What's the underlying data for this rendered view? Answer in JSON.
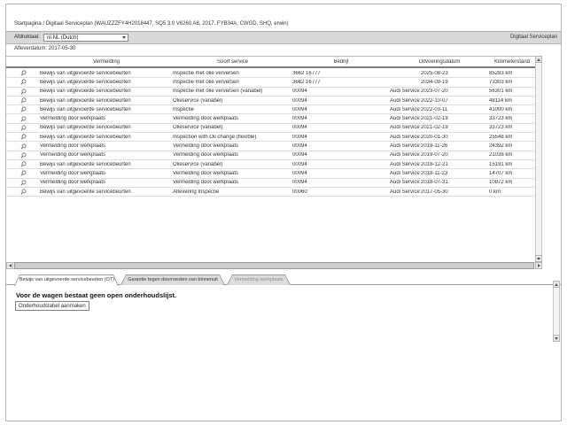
{
  "colors": {
    "toolbar_bg": "#d9d9d9",
    "frame_border": "#b3b3b3",
    "row_divider": "#dedede",
    "tab_inactive_bg": "#dcdcdc",
    "tab_active_bg": "#ffffff"
  },
  "breadcrumb": {
    "text": "Startpagina / Digitaal Serviceplan (WAUZZZFY4H2018447, SQ5 3.0 V6260 A8, 2017, FYB34A, CWGD, SHQ, erwin)"
  },
  "toolbar": {
    "print_language_label": "Afdruktaal:",
    "print_language_value": "nl-NL (Dutch)",
    "app_title": "Digitaal Serviceplan"
  },
  "delivery": {
    "label": "Afleverdatum:",
    "value": "2017-05-30",
    "text": "Afleverdatum: 2017-05-30"
  },
  "table": {
    "columns": [
      "Vermelding",
      "Soort service",
      "Bedrijf",
      "Uitvoeringsdatum",
      "Kilometerstand"
    ],
    "row_icon": "magnifier-icon",
    "rows": [
      {
        "vermelding": "Bewijs van uitgevoerde servicebeurten",
        "soort_service": "Inspectie met olie verversen",
        "bedrijf": "3662 16777",
        "uitvoerder": "",
        "datum": "2025-08-23",
        "kilometerstand": "85283 km"
      },
      {
        "vermelding": "Bewijs van uitgevoerde servicebeurten",
        "soort_service": "Inspectie met olie verversen",
        "bedrijf": "3662 16777",
        "uitvoerder": "",
        "datum": "2034-09-19",
        "kilometerstand": "73303 km"
      },
      {
        "vermelding": "Bewijs van uitgevoerde servicebeurten",
        "soort_service": "Inspectie met olie verversen (variabel)",
        "bedrijf": "00094",
        "uitvoerder": "Audi Service",
        "datum": "2023-07-20",
        "kilometerstand": "56301 km"
      },
      {
        "vermelding": "Bewijs van uitgevoerde servicebeurten",
        "soort_service": "Olieservice (variabel)",
        "bedrijf": "00094",
        "uitvoerder": "Audi Service",
        "datum": "2022-10-07",
        "kilometerstand": "48114 km"
      },
      {
        "vermelding": "Bewijs van uitgevoerde servicebeurten",
        "soort_service": "Inspectie",
        "bedrijf": "00094",
        "uitvoerder": "Audi Service",
        "datum": "2022-03-11",
        "kilometerstand": "41000 km"
      },
      {
        "vermelding": "Vermelding door werkplaats",
        "soort_service": "Vermelding door werkplaats",
        "bedrijf": "00094",
        "uitvoerder": "Audi Service",
        "datum": "2021-02-19",
        "kilometerstand": "33723 km"
      },
      {
        "vermelding": "Bewijs van uitgevoerde servicebeurten",
        "soort_service": "Olieservice (variabel)",
        "bedrijf": "00094",
        "uitvoerder": "Audi Service",
        "datum": "2021-02-19",
        "kilometerstand": "33723 km"
      },
      {
        "vermelding": "Bewijs van uitgevoerde servicebeurten",
        "soort_service": "Inspection with Oil change (flexible)",
        "bedrijf": "00094",
        "uitvoerder": "Audi Service",
        "datum": "2020-01-30",
        "kilometerstand": "25548 km"
      },
      {
        "vermelding": "Vermelding door werkplaats",
        "soort_service": "Vermelding door werkplaats",
        "bedrijf": "00094",
        "uitvoerder": "Audi Service",
        "datum": "2019-11-26",
        "kilometerstand": "24392 km"
      },
      {
        "vermelding": "Vermelding door werkplaats",
        "soort_service": "Vermelding door werkplaats",
        "bedrijf": "00094",
        "uitvoerder": "Audi Service",
        "datum": "2019-07-20",
        "kilometerstand": "21038 km"
      },
      {
        "vermelding": "Bewijs van uitgevoerde servicebeurten",
        "soort_service": "Olieservice (variabel)",
        "bedrijf": "00094",
        "uitvoerder": "Audi Service",
        "datum": "2018-12-21",
        "kilometerstand": "15191 km"
      },
      {
        "vermelding": "Vermelding door werkplaats",
        "soort_service": "Vermelding door werkplaats",
        "bedrijf": "00094",
        "uitvoerder": "Audi Service",
        "datum": "2018-11-23",
        "kilometerstand": "14707 km"
      },
      {
        "vermelding": "Vermelding door werkplaats",
        "soort_service": "Vermelding door werkplaats",
        "bedrijf": "00094",
        "uitvoerder": "Audi Service",
        "datum": "2018-07-31",
        "kilometerstand": "10872 km"
      },
      {
        "vermelding": "Bewijs van uitgevoerde servicebeurten",
        "soort_service": "Aflevering Inspectie",
        "bedrijf": "00060",
        "uitvoerder": "Audi Service",
        "datum": "2017-05-30",
        "kilometerstand": "0 km"
      }
    ]
  },
  "tabs": [
    {
      "label": "Bewijs van uitgevoerde servicebeurten (OT)",
      "active": true
    },
    {
      "label": "Garantie tegen doorroesten van binnenuit",
      "active": false
    },
    {
      "label": "Vermelding werkplaats",
      "active": false
    }
  ],
  "maintenance_panel": {
    "message": "Voor de wagen bestaat geen open onderhoudslijst.",
    "create_button_label": "Onderhoudstabel aanmaken"
  }
}
